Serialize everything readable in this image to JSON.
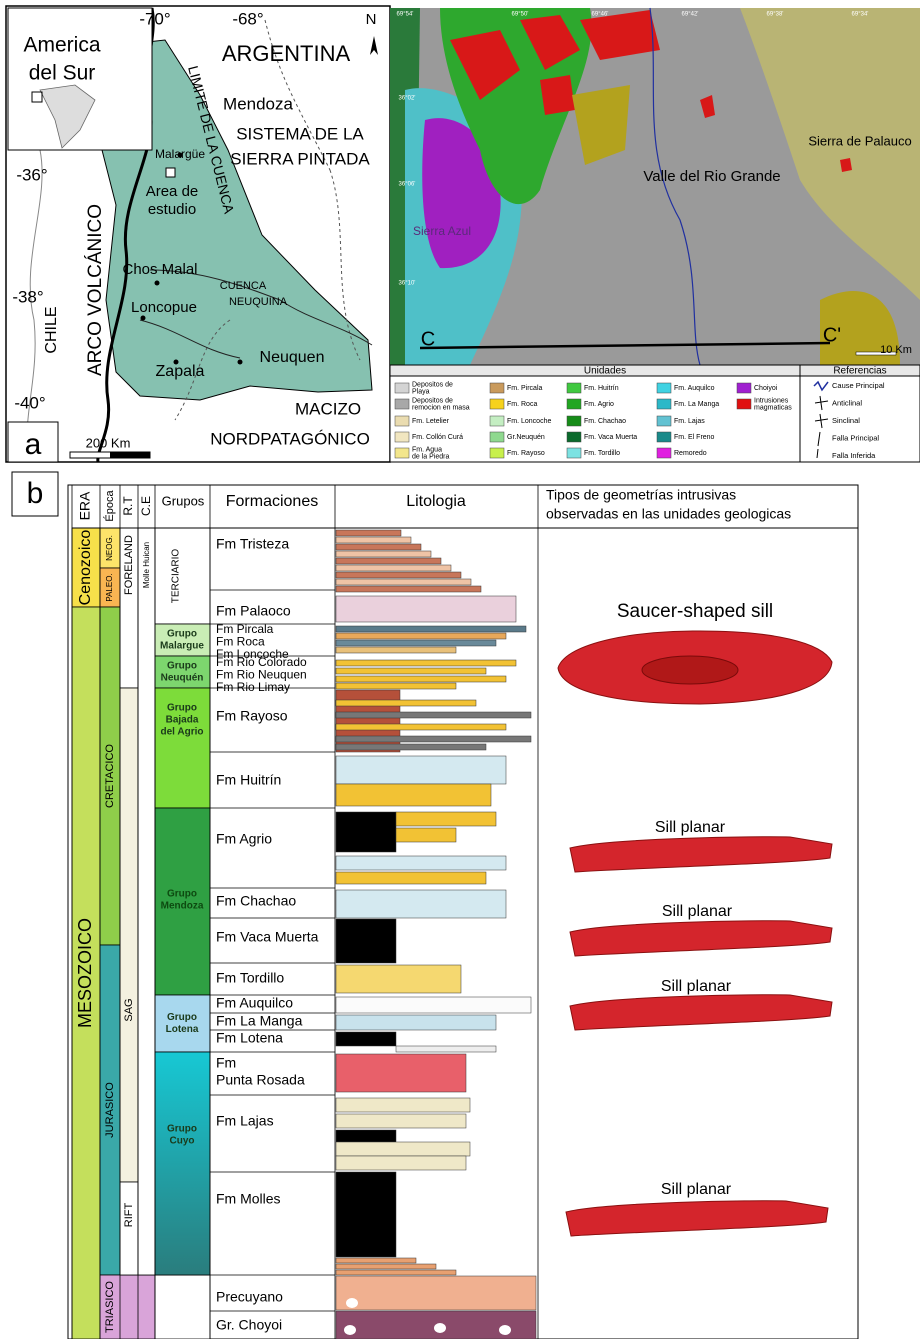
{
  "panel_a": {
    "label": "a",
    "inset_title": [
      "America",
      "del Sur"
    ],
    "map_labels": [
      "-70°",
      "-68°",
      "N",
      "ARGENTINA",
      "LIMITE DE LA CUENCA",
      "Mendoza",
      "SISTEMA DE LA",
      "SIERRA PINTADA",
      "Malargüe",
      "Area de",
      "estudio",
      "-36°",
      "ARCO VOLCÁNICO",
      "Chos Malal",
      "-38°",
      "CHILE",
      "CUENCA",
      "NEUQUINA",
      "Loncopue",
      "Zapala",
      "Neuquen",
      "-40°",
      "MACIZO",
      "NORDPATAGÓNICO",
      "200 Km"
    ],
    "geologic_map_labels": [
      "Sierra Azul",
      "Valle del Rio Grande",
      "Sierra de Palauco",
      "C",
      "C'",
      "10 Km"
    ],
    "coordinates": [
      "69°54'",
      "69°50'",
      "69°46'",
      "69°42'",
      "69°38'",
      "69°34'",
      "36°02'",
      "36°06'",
      "36°10'"
    ],
    "legend": {
      "title": "Unidades",
      "items": [
        {
          "name": [
            "Depositos de",
            "Playa"
          ],
          "color": "#d4d4d4"
        },
        {
          "name": [
            "Depositos de",
            "remocion en masa"
          ],
          "color": "#a8a8a8"
        },
        {
          "name": [
            "Fm. Letelier"
          ],
          "color": "#eadcb0"
        },
        {
          "name": [
            "Fm. Collón Curá"
          ],
          "color": "#f1e6c0"
        },
        {
          "name": [
            "Fm. Agua",
            "de la Piedra"
          ],
          "color": "#f3e68c"
        },
        {
          "name": [
            "Fm. Pircala"
          ],
          "color": "#c99a5c"
        },
        {
          "name": [
            "Fm. Roca"
          ],
          "color": "#f6d21c"
        },
        {
          "name": [
            "Fm. Loncoche"
          ],
          "color": "#c4eec2"
        },
        {
          "name": [
            "Gr.Neuquén"
          ],
          "color": "#8fd98f"
        },
        {
          "name": [
            "Fm. Rayoso"
          ],
          "color": "#c8f04c"
        },
        {
          "name": [
            "Fm. Huitrín"
          ],
          "color": "#40c840"
        },
        {
          "name": [
            "Fm. Agrio"
          ],
          "color": "#21a621"
        },
        {
          "name": [
            "Fm. Chachao"
          ],
          "color": "#168c18"
        },
        {
          "name": [
            "Fm. Vaca Muerta"
          ],
          "color": "#0b6a2c"
        },
        {
          "name": [
            "Fm. Tordillo"
          ],
          "color": "#7ce2e2"
        },
        {
          "name": [
            "Fm. Auquilco"
          ],
          "color": "#40d2e2"
        },
        {
          "name": [
            "Fm. La Manga"
          ],
          "color": "#2cb8c8"
        },
        {
          "name": [
            "Fm. Lajas"
          ],
          "color": "#62c2d2"
        },
        {
          "name": [
            "Fm. El Freno"
          ],
          "color": "#1a8a8a"
        },
        {
          "name": [
            "Remoredo"
          ],
          "color": "#e020e0"
        },
        {
          "name": [
            "Choiyoi"
          ],
          "color": "#a020d0"
        },
        {
          "name": [
            "Intrusiones",
            "magmaticas"
          ],
          "color": "#e01010"
        }
      ]
    },
    "references": {
      "title": "Referencias",
      "items": [
        "Cause Principal",
        "Anticlinal",
        "Sinclinal",
        "Falla Principal",
        "Falla Inferida"
      ]
    }
  },
  "panel_b": {
    "label": "b",
    "headers": {
      "era": "ERA",
      "epoch": "Época",
      "rt": "R.T",
      "ce": "C.E",
      "groups": "Grupos",
      "formations": "Formaciones",
      "lithology": "Litologia",
      "geometries": [
        "Tipos de geometrías intrusivas",
        "observadas en las unidades geologicas"
      ]
    },
    "eras": [
      "Cenozoico",
      "MESOZOICO"
    ],
    "epochs": [
      "NEOG.",
      "PALEO.",
      "CRETACICO",
      "JURASICO",
      "TRIASICO"
    ],
    "tectonic_regimes": [
      "FORELAND",
      "SAG",
      "RIFT"
    ],
    "ce": [
      "Molle Huican"
    ],
    "groups": [
      [
        "TERCIARIO"
      ],
      [
        "Grupo",
        "Malargue"
      ],
      [
        "Grupo",
        "Neuquén"
      ],
      [
        "Grupo",
        "Bajada",
        "del Agrio"
      ],
      [
        "Grupo",
        "Mendoza"
      ],
      [
        "Grupo",
        "Lotena"
      ],
      [
        "Grupo",
        "Cuyo"
      ]
    ],
    "formations": [
      [
        "Fm Tristeza"
      ],
      [
        "Fm Palaoco"
      ],
      [
        "Fm Pircala",
        "Fm Roca",
        "Fm Loncoche"
      ],
      [
        "Fm Rio Colorado",
        "Fm Rio Neuquen",
        "Fm Rio Limay"
      ],
      [
        "Fm Rayoso"
      ],
      [
        "Fm Huitrín"
      ],
      [
        "Fm Agrio"
      ],
      [
        "Fm Chachao"
      ],
      [
        "Fm Vaca Muerta"
      ],
      [
        "Fm Tordillo"
      ],
      [
        "Fm Auquilco"
      ],
      [
        "Fm La Manga"
      ],
      [
        "Fm Lotena"
      ],
      [
        "Fm",
        "Punta Rosada"
      ],
      [
        "Fm Lajas"
      ],
      [
        "Fm Molles"
      ],
      [
        "Precuyano"
      ],
      [
        "Gr. Choyoi"
      ]
    ],
    "sills": [
      "Saucer-shaped sill",
      "Sill planar",
      "Sill planar",
      "Sill planar",
      "Sill planar"
    ]
  }
}
